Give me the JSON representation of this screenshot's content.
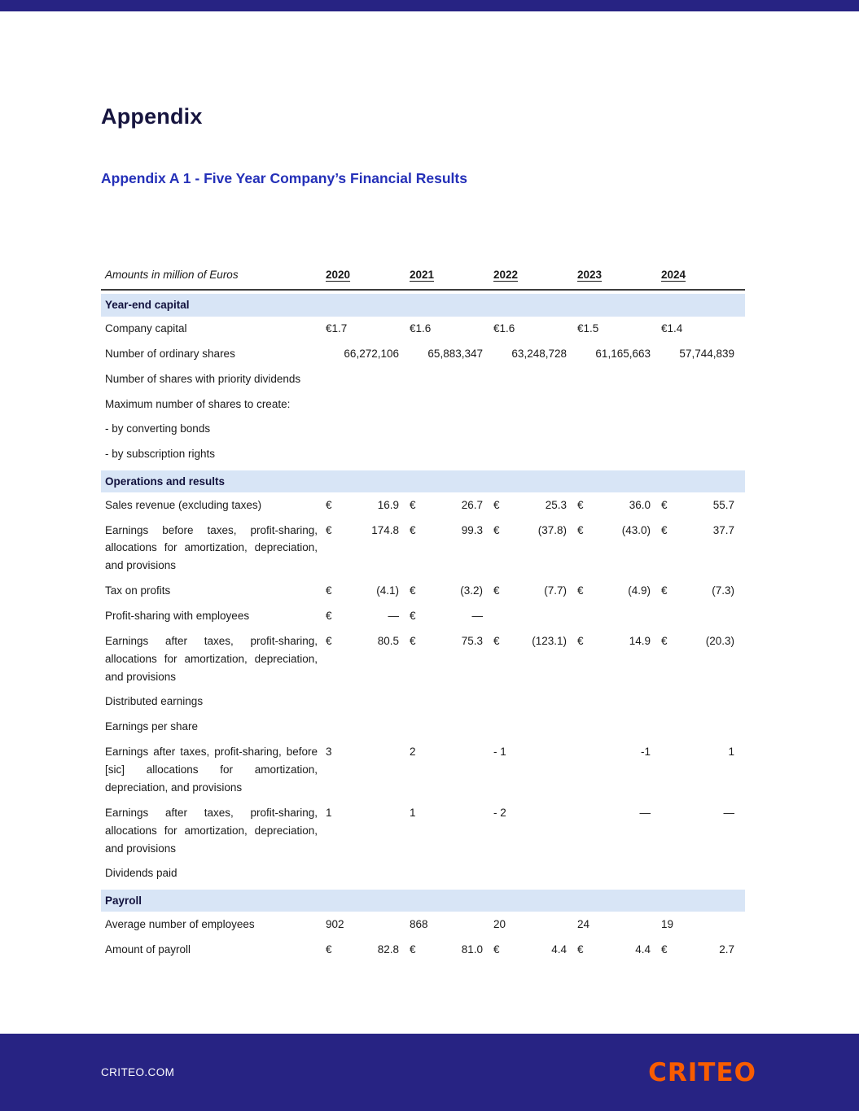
{
  "colors": {
    "brand_navy": "#272383",
    "heading_navy": "#17153F",
    "accent_blue": "#2430B8",
    "section_bg": "#D8E5F6",
    "brand_orange": "#F85C00",
    "text": "#1A1A1A"
  },
  "page": {
    "title": "Appendix",
    "subtitle": "Appendix A 1 - Five Year Company’s Financial Results"
  },
  "table": {
    "caption": "Amounts in million of Euros",
    "years": [
      "2020",
      "2021",
      "2022",
      "2023",
      "2024"
    ],
    "sections": [
      {
        "label": "Year-end capital",
        "rows": [
          {
            "label": "Company capital",
            "cells": [
              {
                "l": "€1.7",
                "r": ""
              },
              {
                "l": "€1.6",
                "r": ""
              },
              {
                "l": "€1.6",
                "r": ""
              },
              {
                "l": "€1.5",
                "r": ""
              },
              {
                "l": "€1.4",
                "r": ""
              }
            ]
          },
          {
            "label": "Number of ordinary shares",
            "cells": [
              {
                "l": "",
                "r": "66,272,106"
              },
              {
                "l": "",
                "r": "65,883,347"
              },
              {
                "l": "",
                "r": "63,248,728"
              },
              {
                "l": "",
                "r": "61,165,663"
              },
              {
                "l": "",
                "r": "57,744,839"
              }
            ]
          },
          {
            "label": "Number of shares with priority dividends",
            "cells": []
          },
          {
            "label": "Maximum number of shares to create:",
            "cells": []
          },
          {
            "label": "- by converting bonds",
            "cells": []
          },
          {
            "label": "- by subscription rights",
            "cells": []
          }
        ]
      },
      {
        "label": "Operations and results",
        "rows": [
          {
            "label": "Sales revenue (excluding taxes)",
            "cells": [
              {
                "l": "€",
                "r": "16.9"
              },
              {
                "l": "€",
                "r": "26.7"
              },
              {
                "l": "€",
                "r": "25.3"
              },
              {
                "l": "€",
                "r": "36.0"
              },
              {
                "l": "€",
                "r": "55.7"
              }
            ]
          },
          {
            "label": "Earnings before taxes, profit-sharing, allocations for amortization, depreciation, and provisions",
            "justify": true,
            "cells": [
              {
                "l": "€",
                "r": "174.8"
              },
              {
                "l": "€",
                "r": "99.3"
              },
              {
                "l": "€",
                "r": "(37.8)"
              },
              {
                "l": "€",
                "r": "(43.0)"
              },
              {
                "l": "€",
                "r": "37.7"
              }
            ]
          },
          {
            "label": "Tax on profits",
            "cells": [
              {
                "l": "€",
                "r": "(4.1)"
              },
              {
                "l": "€",
                "r": "(3.2)"
              },
              {
                "l": "€",
                "r": "(7.7)"
              },
              {
                "l": "€",
                "r": "(4.9)"
              },
              {
                "l": "€",
                "r": "(7.3)"
              }
            ]
          },
          {
            "label": "Profit-sharing with employees",
            "cells": [
              {
                "l": "€",
                "r": "—"
              },
              {
                "l": "€",
                "r": "—"
              },
              {
                "l": "",
                "r": ""
              },
              {
                "l": "",
                "r": ""
              },
              {
                "l": "",
                "r": ""
              }
            ]
          },
          {
            "label": "Earnings after taxes, profit-sharing, allocations for amortization, depreciation, and provisions",
            "justify": true,
            "cells": [
              {
                "l": "€",
                "r": "80.5"
              },
              {
                "l": "€",
                "r": "75.3"
              },
              {
                "l": "€",
                "r": "(123.1)"
              },
              {
                "l": "€",
                "r": "14.9"
              },
              {
                "l": "€",
                "r": "(20.3)"
              }
            ]
          },
          {
            "label": "Distributed earnings",
            "cells": []
          },
          {
            "label": "Earnings per share",
            "cells": []
          },
          {
            "label": "Earnings after taxes, profit-sharing, before [sic] allocations for amortization, depreciation, and provisions",
            "justify": true,
            "cells": [
              {
                "l": "3",
                "r": ""
              },
              {
                "l": "2",
                "r": ""
              },
              {
                "l": "- 1",
                "r": ""
              },
              {
                "l": "",
                "r": "-1"
              },
              {
                "l": "",
                "r": "1"
              }
            ]
          },
          {
            "label": "Earnings after taxes, profit-sharing, allocations for amortization, depreciation, and provisions",
            "justify": true,
            "cells": [
              {
                "l": "1",
                "r": ""
              },
              {
                "l": "1",
                "r": ""
              },
              {
                "l": "- 2",
                "r": ""
              },
              {
                "l": "",
                "r": "—"
              },
              {
                "l": "",
                "r": "—"
              }
            ]
          },
          {
            "label": "Dividends paid",
            "cells": []
          }
        ]
      },
      {
        "label": "Payroll",
        "rows": [
          {
            "label": "Average number of employees",
            "cells": [
              {
                "l": "902",
                "r": ""
              },
              {
                "l": "868",
                "r": ""
              },
              {
                "l": "20",
                "r": ""
              },
              {
                "l": "24",
                "r": ""
              },
              {
                "l": "19",
                "r": ""
              }
            ]
          },
          {
            "label": "Amount of payroll",
            "cells": [
              {
                "l": "€",
                "r": "82.8"
              },
              {
                "l": "€",
                "r": "81.0"
              },
              {
                "l": "€",
                "r": "4.4"
              },
              {
                "l": "€",
                "r": "4.4"
              },
              {
                "l": "€",
                "r": "2.7"
              }
            ]
          }
        ]
      }
    ]
  },
  "footer": {
    "site": "CRITEO.COM",
    "logo_text": "CRITEO"
  }
}
